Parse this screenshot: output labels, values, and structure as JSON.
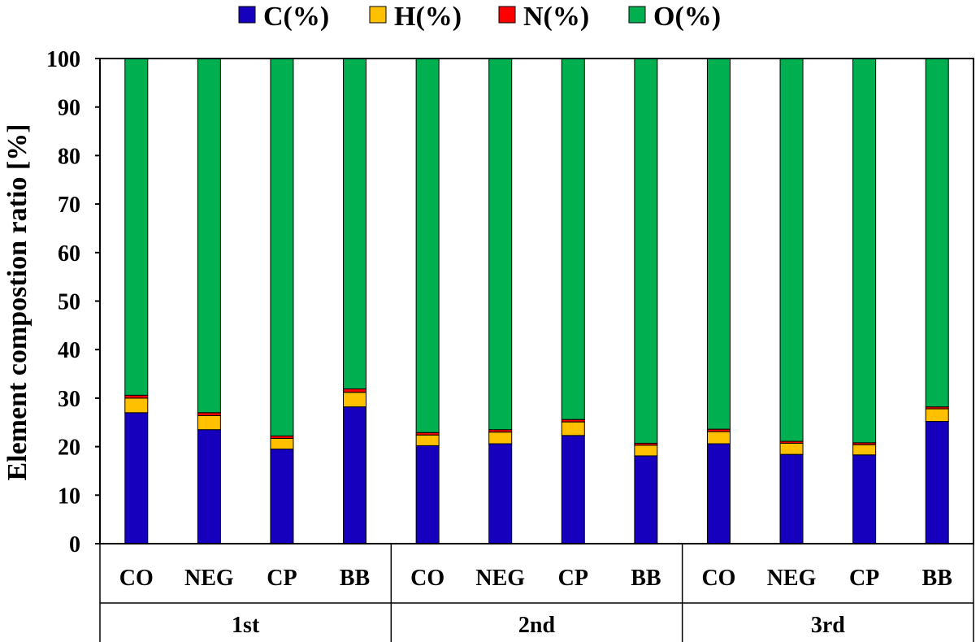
{
  "chart_data": {
    "type": "bar",
    "stacked": true,
    "title": "",
    "xlabel": "",
    "ylabel": "Element compostion ratio [%]",
    "ylim": [
      0,
      100
    ],
    "yticks": [
      0,
      10,
      20,
      30,
      40,
      50,
      60,
      70,
      80,
      90,
      100
    ],
    "grid": false,
    "legend_position": "top",
    "groups": [
      {
        "label": "1st",
        "categories": [
          "CO",
          "NEG",
          "CP",
          "BB"
        ]
      },
      {
        "label": "2nd",
        "categories": [
          "CO",
          "NEG",
          "CP",
          "BB"
        ]
      },
      {
        "label": "3rd",
        "categories": [
          "CO",
          "NEG",
          "CP",
          "BB"
        ]
      }
    ],
    "series": [
      {
        "name": "C(%)",
        "color": "#1600BE",
        "values": [
          27.0,
          23.5,
          19.5,
          28.2,
          20.2,
          20.6,
          22.3,
          18.1,
          20.6,
          18.4,
          18.3,
          25.2
        ]
      },
      {
        "name": "H(%)",
        "color": "#FFC000",
        "values": [
          3.0,
          2.9,
          2.2,
          3.0,
          2.2,
          2.4,
          2.8,
          2.2,
          2.5,
          2.3,
          2.1,
          2.6
        ]
      },
      {
        "name": "N(%)",
        "color": "#FF0000",
        "values": [
          0.6,
          0.6,
          0.5,
          0.7,
          0.5,
          0.5,
          0.5,
          0.4,
          0.5,
          0.4,
          0.4,
          0.4
        ]
      },
      {
        "name": "O(%)",
        "color": "#00B050",
        "values": [
          69.4,
          73.0,
          77.8,
          68.1,
          77.1,
          76.5,
          74.4,
          79.3,
          76.4,
          78.9,
          79.2,
          71.8
        ]
      }
    ]
  }
}
